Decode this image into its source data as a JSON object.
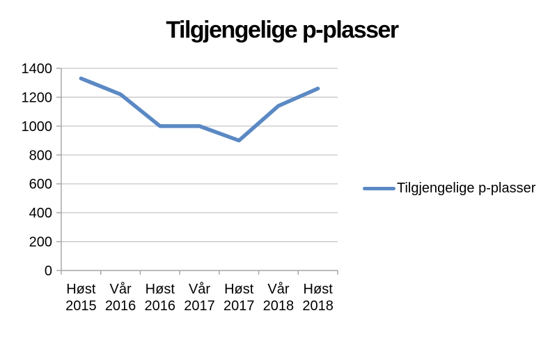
{
  "title": "Tilgjengelige p-plasser",
  "colors": {
    "line": "#5B89C4",
    "gridline": "#C6C6C6",
    "axis": "#A3A3A3",
    "text": "#000000"
  },
  "legend": {
    "label": "Tilgjengelige p-plasser",
    "swatch_icon": "line-swatch"
  },
  "chart_data": {
    "type": "line",
    "title": "Tilgjengelige p-plasser",
    "categories": [
      "Høst 2015",
      "Vår 2016",
      "Høst 2016",
      "Vår 2017",
      "Høst 2017",
      "Vår 2018",
      "Høst 2018"
    ],
    "series": [
      {
        "name": "Tilgjengelige p-plasser",
        "values": [
          1330,
          1220,
          1000,
          1000,
          900,
          1140,
          1260
        ]
      }
    ],
    "xlabel": "",
    "ylabel": "",
    "ylim": [
      0,
      1400
    ],
    "yticks": [
      0,
      200,
      400,
      600,
      800,
      1000,
      1200,
      1400
    ],
    "grid": true,
    "legend_position": "right"
  }
}
